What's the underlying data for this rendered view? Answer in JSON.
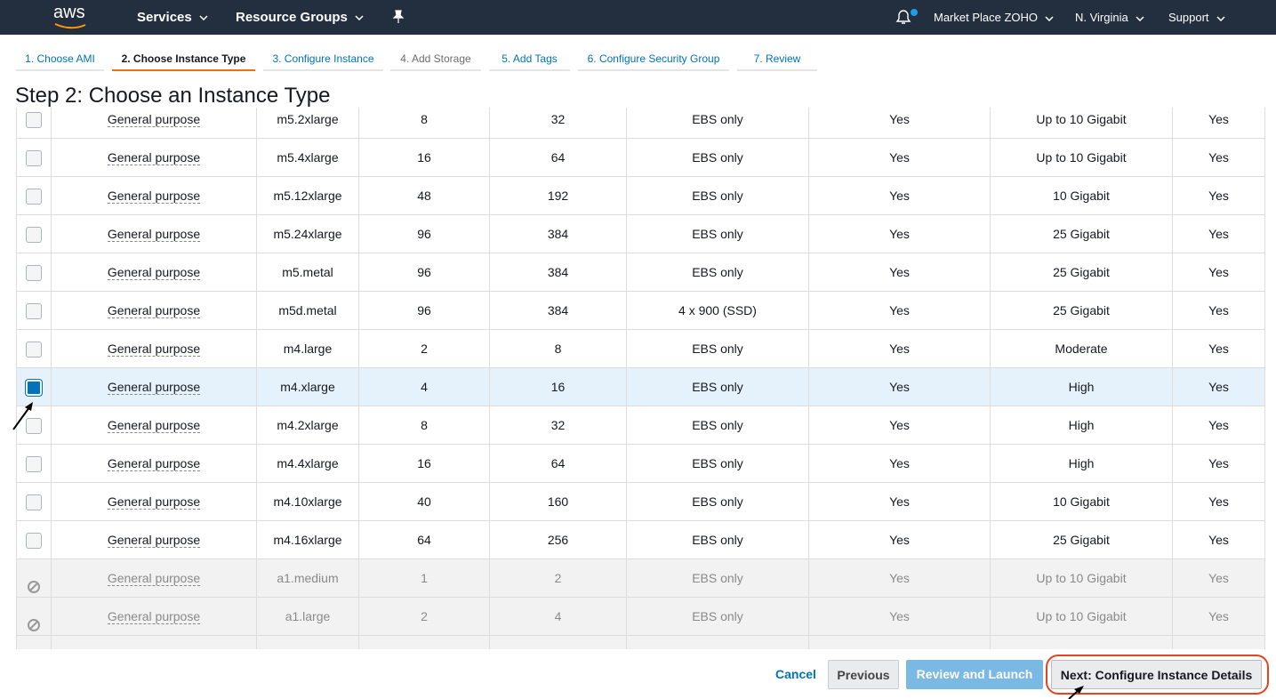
{
  "nav": {
    "logo": "aws",
    "services": "Services",
    "resource_groups": "Resource Groups",
    "account": "Market Place ZOHO",
    "region": "N. Virginia",
    "support": "Support"
  },
  "tabs": {
    "active": 1,
    "disabled": [
      3
    ],
    "items": [
      "1. Choose AMI",
      "2. Choose Instance Type",
      "3. Configure Instance",
      "4. Add Storage",
      "5. Add Tags",
      "6. Configure Security Group",
      "7. Review"
    ]
  },
  "heading": "Step 2: Choose an Instance Type",
  "table": {
    "selected_row": 7,
    "disabled_rows": [
      12,
      13
    ],
    "rows": [
      [
        "General purpose",
        "m5.2xlarge",
        "8",
        "32",
        "EBS only",
        "Yes",
        "Up to 10 Gigabit",
        "Yes"
      ],
      [
        "General purpose",
        "m5.4xlarge",
        "16",
        "64",
        "EBS only",
        "Yes",
        "Up to 10 Gigabit",
        "Yes"
      ],
      [
        "General purpose",
        "m5.12xlarge",
        "48",
        "192",
        "EBS only",
        "Yes",
        "10 Gigabit",
        "Yes"
      ],
      [
        "General purpose",
        "m5.24xlarge",
        "96",
        "384",
        "EBS only",
        "Yes",
        "25 Gigabit",
        "Yes"
      ],
      [
        "General purpose",
        "m5.metal",
        "96",
        "384",
        "EBS only",
        "Yes",
        "25 Gigabit",
        "Yes"
      ],
      [
        "General purpose",
        "m5d.metal",
        "96",
        "384",
        "4 x 900 (SSD)",
        "Yes",
        "25 Gigabit",
        "Yes"
      ],
      [
        "General purpose",
        "m4.large",
        "2",
        "8",
        "EBS only",
        "Yes",
        "Moderate",
        "Yes"
      ],
      [
        "General purpose",
        "m4.xlarge",
        "4",
        "16",
        "EBS only",
        "Yes",
        "High",
        "Yes"
      ],
      [
        "General purpose",
        "m4.2xlarge",
        "8",
        "32",
        "EBS only",
        "Yes",
        "High",
        "Yes"
      ],
      [
        "General purpose",
        "m4.4xlarge",
        "16",
        "64",
        "EBS only",
        "Yes",
        "High",
        "Yes"
      ],
      [
        "General purpose",
        "m4.10xlarge",
        "40",
        "160",
        "EBS only",
        "Yes",
        "10 Gigabit",
        "Yes"
      ],
      [
        "General purpose",
        "m4.16xlarge",
        "64",
        "256",
        "EBS only",
        "Yes",
        "25 Gigabit",
        "Yes"
      ],
      [
        "General purpose",
        "a1.medium",
        "1",
        "2",
        "EBS only",
        "Yes",
        "Up to 10 Gigabit",
        "Yes"
      ],
      [
        "General purpose",
        "a1.large",
        "2",
        "4",
        "EBS only",
        "Yes",
        "Up to 10 Gigabit",
        "Yes"
      ]
    ]
  },
  "buttons": {
    "cancel": "Cancel",
    "previous": "Previous",
    "review": "Review and Launch",
    "next": "Next: Configure Instance Details"
  }
}
